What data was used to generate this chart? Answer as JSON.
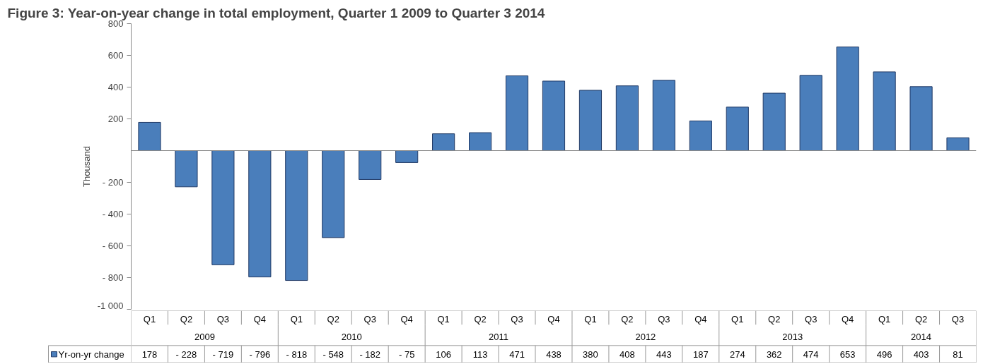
{
  "chart_data": {
    "type": "bar",
    "title": "Figure 3: Year-on-year change in total employment, Quarter 1 2009 to Quarter 3 2014",
    "ylabel": "Thousand",
    "categories": [
      "Q1",
      "Q2",
      "Q3",
      "Q4",
      "Q1",
      "Q2",
      "Q3",
      "Q4",
      "Q1",
      "Q2",
      "Q3",
      "Q4",
      "Q1",
      "Q2",
      "Q3",
      "Q4",
      "Q1",
      "Q2",
      "Q3",
      "Q4",
      "Q1",
      "Q2",
      "Q3"
    ],
    "annotations": [
      "2009",
      "2010",
      "2011",
      "2012",
      "2013",
      "2014"
    ],
    "series": [
      {
        "name": "Yr-on-yr change",
        "color": "#4a7ebb",
        "values": [
          178,
          -228,
          -719,
          -796,
          -818,
          -548,
          -182,
          -75,
          106,
          113,
          471,
          438,
          380,
          408,
          443,
          187,
          274,
          362,
          474,
          653,
          496,
          403,
          81
        ],
        "value_labels": [
          "178",
          "- 228",
          "- 719",
          "- 796",
          "- 818",
          "- 548",
          "- 182",
          "- 75",
          "106",
          "113",
          "471",
          "438",
          "380",
          "408",
          "443",
          "187",
          "274",
          "362",
          "474",
          "653",
          "496",
          "403",
          "81"
        ]
      }
    ],
    "ylim": [
      -1000,
      800
    ],
    "yticks": [
      800,
      600,
      400,
      200,
      {
        "value": -200,
        "label": "- 200"
      },
      {
        "value": -400,
        "label": "- 400"
      },
      {
        "value": -600,
        "label": "- 600"
      },
      {
        "value": -800,
        "label": "- 800"
      },
      {
        "value": -1000,
        "label": "-1 000"
      }
    ],
    "grid": false,
    "legend": "bottom"
  }
}
